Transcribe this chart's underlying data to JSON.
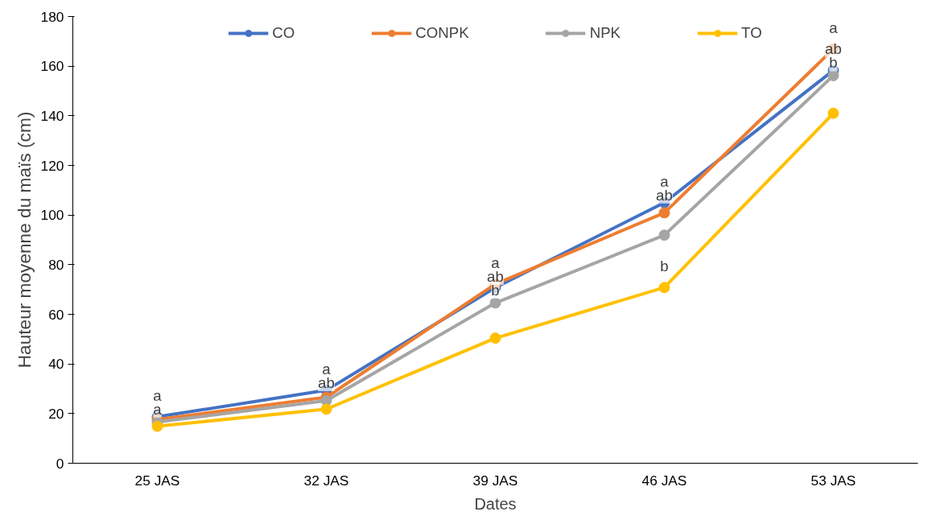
{
  "chart_data": {
    "type": "line",
    "xlabel": "Dates",
    "ylabel": "Hauteur moyenne du maïs (cm)",
    "categories": [
      "25 JAS",
      "32 JAS",
      "39 JAS",
      "46 JAS",
      "53 JAS"
    ],
    "series": [
      {
        "name": "CO",
        "color": "#4472c4",
        "values": [
          18.7,
          29.4,
          70.8,
          105,
          158.3
        ],
        "value_labels": [
          "a",
          "a",
          "ab",
          "a",
          "ab"
        ]
      },
      {
        "name": "CONPK",
        "color": "#ed7d31",
        "values": [
          17.6,
          26.6,
          72.2,
          100.9,
          166.9
        ],
        "value_labels": [
          "a",
          "ab",
          "a",
          "ab",
          "a"
        ]
      },
      {
        "name": "NPK",
        "color": "#a5a5a5",
        "values": [
          16.6,
          25.2,
          64.6,
          91.9,
          156.2
        ],
        "value_labels": [
          null,
          null,
          "b",
          null,
          "b"
        ]
      },
      {
        "name": "TO",
        "color": "#ffc000",
        "values": [
          14.9,
          21.8,
          50.4,
          70.8,
          141
        ],
        "value_labels": [
          null,
          null,
          null,
          "b",
          null
        ]
      }
    ],
    "ylim": [
      0,
      180
    ],
    "yticks": [
      0,
      20,
      40,
      60,
      80,
      100,
      120,
      140,
      160,
      180
    ],
    "grid": false,
    "legend": "top",
    "marker": "circle",
    "line_style": "solid"
  }
}
